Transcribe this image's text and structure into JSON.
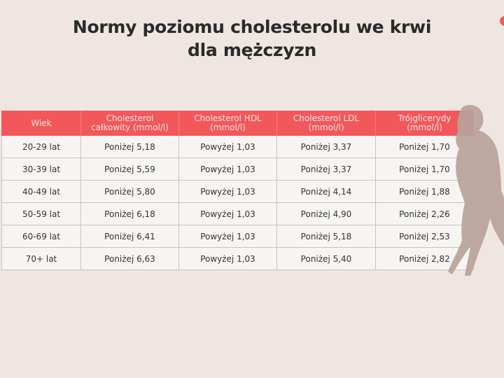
{
  "title": "Normy poziomu cholesterolu we krwi dla mężczyzn",
  "table": {
    "header": [
      "Wiek",
      "Cholesterol całkowity (mmol/l)",
      "Cholesterol HDL (mmol/l)",
      "Cholesterol LDL (mmol/l)",
      "Trójglicerydy (mmol/l)"
    ],
    "rows": [
      [
        "20-29 lat",
        "Poniżej 5,18",
        "Powyżej 1,03",
        "Poniżej 3,37",
        "Poniżej 1,70"
      ],
      [
        "30-39 lat",
        "Poniżej 5,59",
        "Powyżej 1,03",
        "Poniżej 3,37",
        "Poniżej 1,70"
      ],
      [
        "40-49 lat",
        "Poniżej 5,80",
        "Powyżej 1,03",
        "Poniżej 4,14",
        "Poniżej 1,88"
      ],
      [
        "50-59 lat",
        "Poniżej 6,18",
        "Powyżej 1,03",
        "Poniżej 4,90",
        "Poniżej 2,26"
      ],
      [
        "60-69 lat",
        "Poniżej 6,41",
        "Powyżej 1,03",
        "Poniżej 5,18",
        "Poniżej 2,53"
      ],
      [
        "70+ lat",
        "Poniżej 6,63",
        "Powyżej 1,03",
        "Poniżej 5,40",
        "Poniżej 2,82"
      ]
    ]
  }
}
